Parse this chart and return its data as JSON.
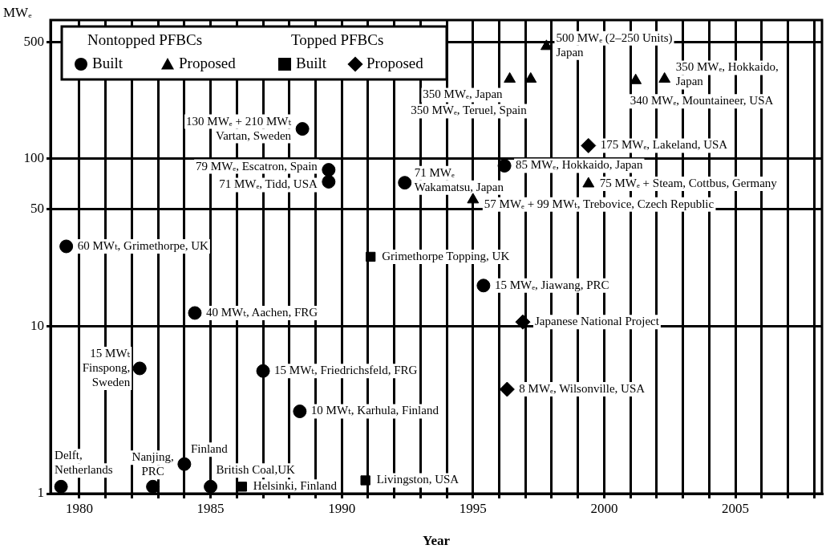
{
  "chart_data": {
    "type": "scatter",
    "xlabel": "Year",
    "ylabel": "MWₑ",
    "legend": "top left",
    "grid": true,
    "log": true,
    "xlim": [
      1978.9,
      2008.3
    ],
    "xticks": [
      1980,
      {
        "value": 1981,
        "label": null
      },
      {
        "value": 1982,
        "label": null
      },
      {
        "value": 1983,
        "label": null
      },
      {
        "value": 1984,
        "label": null
      },
      1985,
      {
        "value": 1986,
        "label": null
      },
      {
        "value": 1987,
        "label": null
      },
      {
        "value": 1988,
        "label": null
      },
      {
        "value": 1989,
        "label": null
      },
      1990,
      {
        "value": 1991,
        "label": null
      },
      {
        "value": 1992,
        "label": null
      },
      {
        "value": 1993,
        "label": null
      },
      {
        "value": 1994,
        "label": null
      },
      1995,
      {
        "value": 1996,
        "label": null
      },
      {
        "value": 1997,
        "label": null
      },
      {
        "value": 1998,
        "label": null
      },
      {
        "value": 1999,
        "label": null
      },
      2000,
      {
        "value": 2001,
        "label": null
      },
      {
        "value": 2002,
        "label": null
      },
      {
        "value": 2003,
        "label": null
      },
      {
        "value": 2004,
        "label": null
      },
      2005,
      {
        "value": 2006,
        "label": null
      },
      {
        "value": 2007,
        "label": null
      },
      {
        "value": 2008,
        "label": null
      }
    ],
    "ylim": [
      1,
      675
    ],
    "yticks": [
      1,
      10,
      50,
      100,
      500
    ],
    "series": [
      {
        "name": "Built",
        "color": "#000000",
        "marker": "circle",
        "x": [
          1979.3,
          1982.8,
          1984.0,
          1985.0,
          1979.5,
          1982.3,
          1984.4,
          1987.0,
          1988.4,
          1988.5,
          1989.5,
          1989.5,
          1992.4,
          1996.2,
          1995.4
        ],
        "values": [
          1.1,
          1.1,
          1.5,
          1.1,
          30,
          5.6,
          12,
          5.4,
          3.1,
          151,
          86,
          73,
          72,
          91,
          17.5
        ]
      },
      {
        "name": "Proposed",
        "color": "#000000",
        "marker": "triangle",
        "x": [
          1997.8,
          1996.4,
          1997.2,
          2001.2,
          2002.3,
          1999.4,
          1995.0
        ],
        "values": [
          470,
          300,
          300,
          294,
          300,
          71,
          57
        ]
      },
      {
        "name": "Built",
        "color": "#000000",
        "marker": "square",
        "x": [
          1986.2,
          1990.9,
          1991.1
        ],
        "values": [
          1.1,
          1.2,
          26
        ]
      },
      {
        "name": "Proposed",
        "color": "#000000",
        "marker": "diamond",
        "x": [
          1996.9,
          1996.3,
          1999.4
        ],
        "values": [
          10.6,
          4.2,
          120
        ]
      }
    ],
    "annotations": [
      "Nontopped PFBCs",
      "Topped PFBCs",
      {
        "text": "Delft,\nNetherlands",
        "x": 1979.3,
        "y": 1.1
      },
      {
        "text": "Nanjing,\nPRC",
        "x": 1982.8,
        "y": 1.1
      },
      {
        "text": "Finland",
        "x": 1984.0,
        "y": 1.5
      },
      {
        "text": "British Coal,UK",
        "x": 1985.0,
        "y": 1.1
      },
      {
        "text": "Helsinki, Finland",
        "x": 1986.2,
        "y": 1.1
      },
      {
        "text": "Livingston, USA",
        "x": 1990.9,
        "y": 1.2
      },
      {
        "text": "60 MWₜ, Grimethorpe, UK",
        "x": 1979.5,
        "y": 30
      },
      {
        "text": "15 MWₜ\nFinspong,\nSweden",
        "x": 1982.3,
        "y": 5.6
      },
      {
        "text": "40 MWₜ, Aachen, FRG",
        "x": 1984.4,
        "y": 12
      },
      {
        "text": "15 MWₜ, Friedrichsfeld, FRG",
        "x": 1987.0,
        "y": 5.4
      },
      {
        "text": "10 MWₜ, Karhula, Finland",
        "x": 1988.4,
        "y": 3.1
      },
      {
        "text": "Grimethorpe Topping, UK",
        "x": 1991.1,
        "y": 26
      },
      {
        "text": "130 MWₑ + 210 MWₜ\nVartan, Sweden",
        "x": 1988.5,
        "y": 151
      },
      {
        "text": "79 MWₑ, Escatron, Spain",
        "x": 1989.5,
        "y": 86
      },
      {
        "text": "71 MWₑ, Tidd, USA",
        "x": 1989.5,
        "y": 73
      },
      {
        "text": "71 MWₑ\nWakamatsu, Japan",
        "x": 1992.4,
        "y": 72
      },
      {
        "text": "85 MWₑ, Hokkaido, Japan",
        "x": 1996.2,
        "y": 91
      },
      {
        "text": "15 MWₑ, Jiawang, PRC",
        "x": 1995.4,
        "y": 17.5
      },
      {
        "text": "Japanese National Project",
        "x": 1996.9,
        "y": 10.6
      },
      {
        "text": "8 MWₑ, Wilsonville, USA",
        "x": 1996.3,
        "y": 4.2
      },
      {
        "text": "175 MWₑ, Lakeland, USA",
        "x": 1999.4,
        "y": 120
      },
      {
        "text": "500 MWₑ (2–250 Units)\nJapan",
        "x": 1997.8,
        "y": 470
      },
      {
        "text": "350 MWₑ, Japan",
        "x": 1996.4,
        "y": 300
      },
      {
        "text": "350 MWₑ, Teruel, Spain",
        "x": 1997.2,
        "y": 300
      },
      {
        "text": "340 MWₑ, Mountaineer, USA",
        "x": 2001.2,
        "y": 294
      },
      {
        "text": "350 MWₑ, Hokkaido,\nJapan",
        "x": 2002.3,
        "y": 300
      },
      {
        "text": "75 MWₑ + Steam, Cottbus, Germany",
        "x": 1999.4,
        "y": 71
      },
      {
        "text": "57 MWₑ + 99 MWₜ, Trebovice, Czech Republic",
        "x": 1995.0,
        "y": 57
      }
    ]
  }
}
